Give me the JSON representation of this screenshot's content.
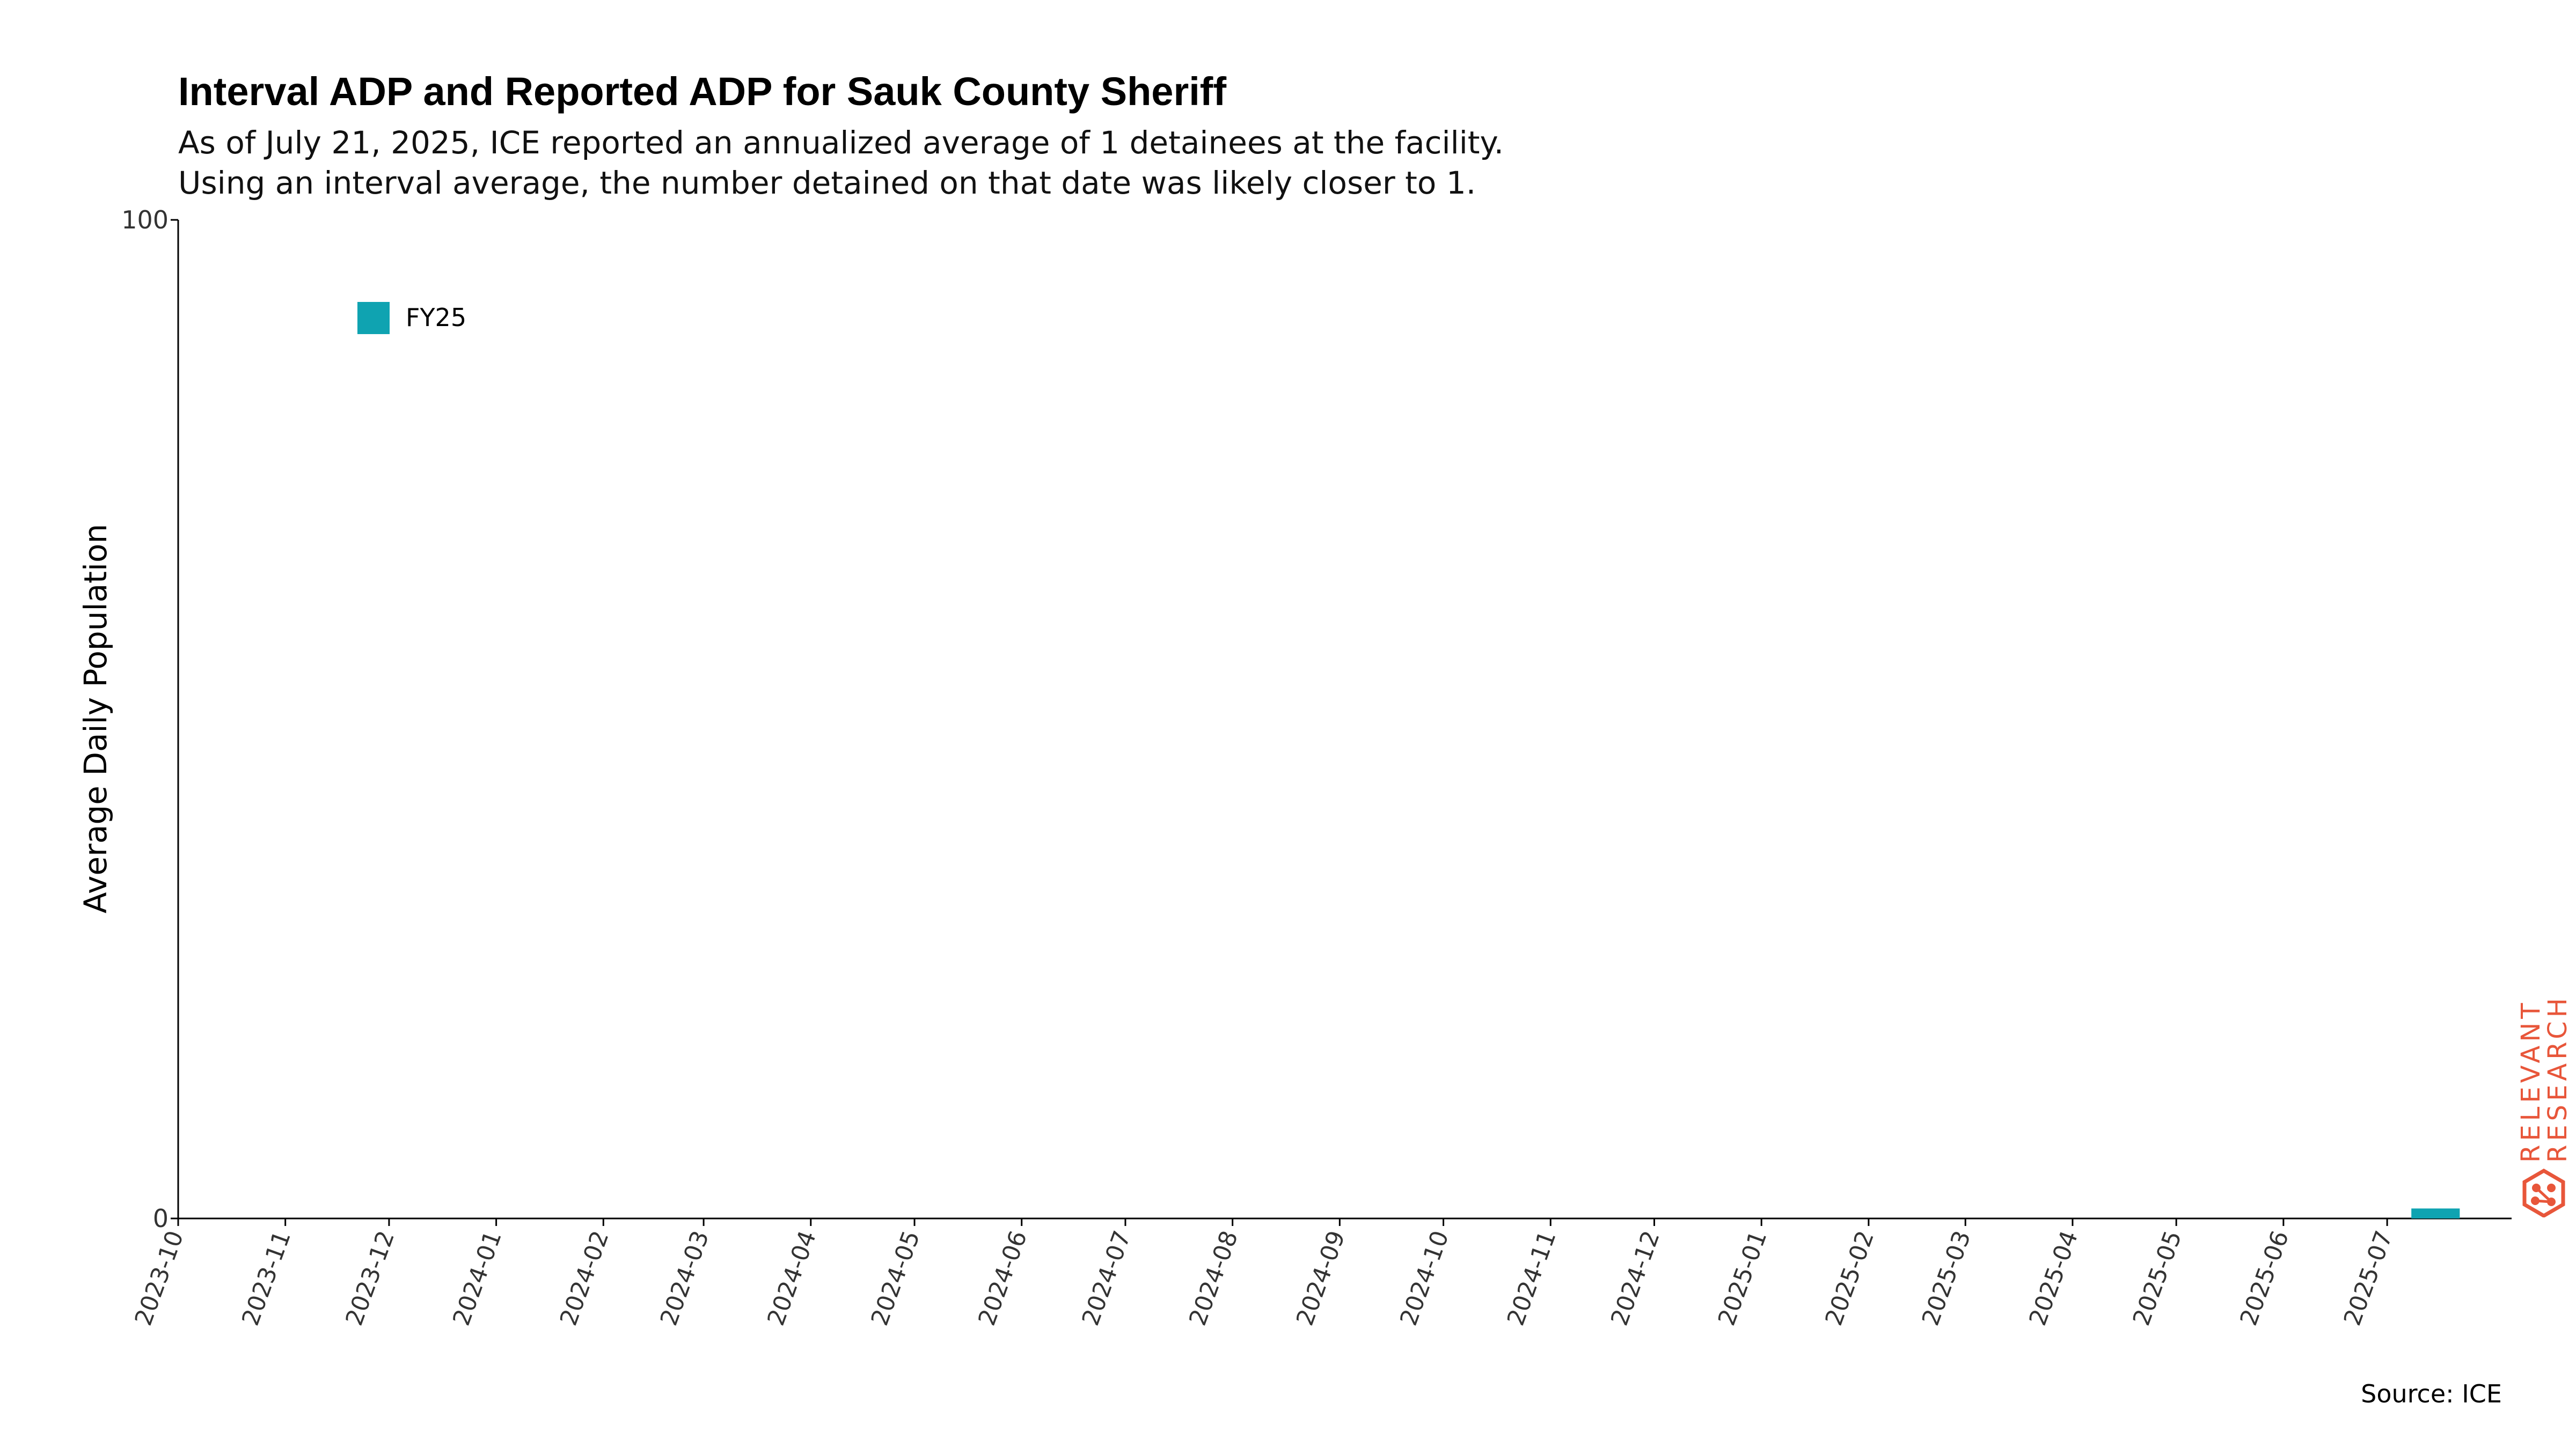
{
  "header": {
    "title": "Interval ADP and Reported ADP for Sauk County Sheriff",
    "subtitle_line_1": "As of July 21, 2025, ICE reported an annualized average of 1 detainees at the facility.",
    "subtitle_line_2": "Using an interval average, the number detained on that date was likely closer to 1."
  },
  "chart_data": {
    "type": "bar",
    "title": "Interval ADP and Reported ADP for Sauk County Sheriff",
    "xlabel": "",
    "ylabel": "Average Daily Population",
    "ylim": [
      0,
      100
    ],
    "y_ticks": [
      "0",
      "100"
    ],
    "x_range": [
      "2023-10-01",
      "2025-08-06"
    ],
    "x_ticks": [
      "2023-10",
      "2023-11",
      "2023-12",
      "2024-01",
      "2024-02",
      "2024-03",
      "2024-04",
      "2024-05",
      "2024-06",
      "2024-07",
      "2024-08",
      "2024-09",
      "2024-10",
      "2024-11",
      "2024-12",
      "2025-01",
      "2025-02",
      "2025-03",
      "2025-04",
      "2025-05",
      "2025-06",
      "2025-07"
    ],
    "grid": false,
    "legend": {
      "placement": "top-left",
      "entries": [
        {
          "label": "FY25",
          "color": "#0fa3b1"
        }
      ]
    },
    "series": [
      {
        "name": "FY25",
        "color": "#0fa3b1",
        "bars": [
          {
            "start": "2025-07-08",
            "end": "2025-07-21",
            "value": 1
          }
        ]
      }
    ]
  },
  "footer": {
    "source": "Source: ICE"
  },
  "brand": {
    "line1": "RELEVANT",
    "line2": "RESEARCH",
    "color": "#e8563a",
    "icon": "hexagon-network-logo"
  }
}
